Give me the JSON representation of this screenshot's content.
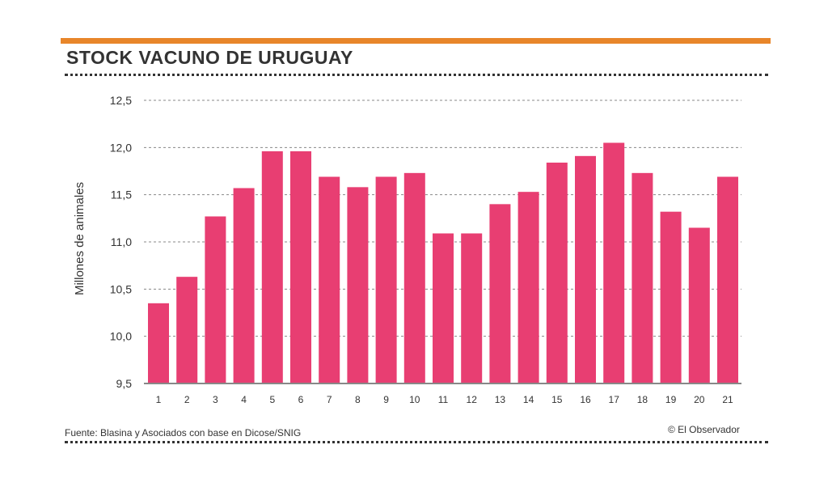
{
  "chart_data": {
    "type": "bar",
    "title": "STOCK VACUNO DE URUGUAY",
    "xlabel": "",
    "ylabel": "Millones de animales",
    "ylim": [
      9.5,
      12.5
    ],
    "yticks": [
      "9,5",
      "10,0",
      "10,5",
      "11,0",
      "11,5",
      "12,0",
      "12,5"
    ],
    "ytick_values": [
      9.5,
      10.0,
      10.5,
      11.0,
      11.5,
      12.0,
      12.5
    ],
    "grid": true,
    "categories": [
      "1",
      "2",
      "3",
      "4",
      "5",
      "6",
      "7",
      "8",
      "9",
      "10",
      "11",
      "12",
      "13",
      "14",
      "15",
      "16",
      "17",
      "18",
      "19",
      "20",
      "21"
    ],
    "values": [
      10.35,
      10.63,
      11.27,
      11.57,
      11.96,
      11.96,
      11.69,
      11.58,
      11.69,
      11.73,
      11.09,
      11.09,
      11.4,
      11.53,
      11.84,
      11.91,
      12.05,
      11.73,
      11.32,
      11.15,
      11.69
    ],
    "bar_color": "#e83e72"
  },
  "source": "Fuente: Blasina y Asociados con base en Dicose/SNIG",
  "credit": "© El Observador"
}
